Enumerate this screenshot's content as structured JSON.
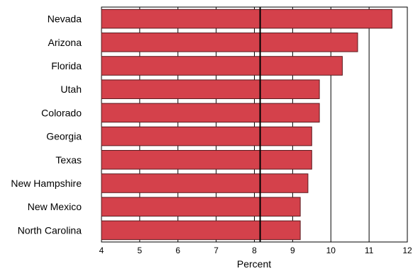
{
  "chart_data": {
    "type": "bar",
    "orientation": "horizontal",
    "categories": [
      "Nevada",
      "Arizona",
      "Florida",
      "Utah",
      "Colorado",
      "Georgia",
      "Texas",
      "New Hampshire",
      "New Mexico",
      "North Carolina"
    ],
    "values": [
      11.6,
      10.7,
      10.3,
      9.7,
      9.7,
      9.5,
      9.5,
      9.4,
      9.2,
      9.2
    ],
    "xlabel": "Percent",
    "ylabel": "",
    "title": "",
    "xlim": [
      4,
      12
    ],
    "xticks": [
      "4",
      "5",
      "6",
      "7",
      "8",
      "9",
      "10",
      "11",
      "12"
    ],
    "reference_line": 8.15,
    "grid": "vertical",
    "bar_color": "#d4414b",
    "bar_edge_color": "#5a1a1e"
  }
}
